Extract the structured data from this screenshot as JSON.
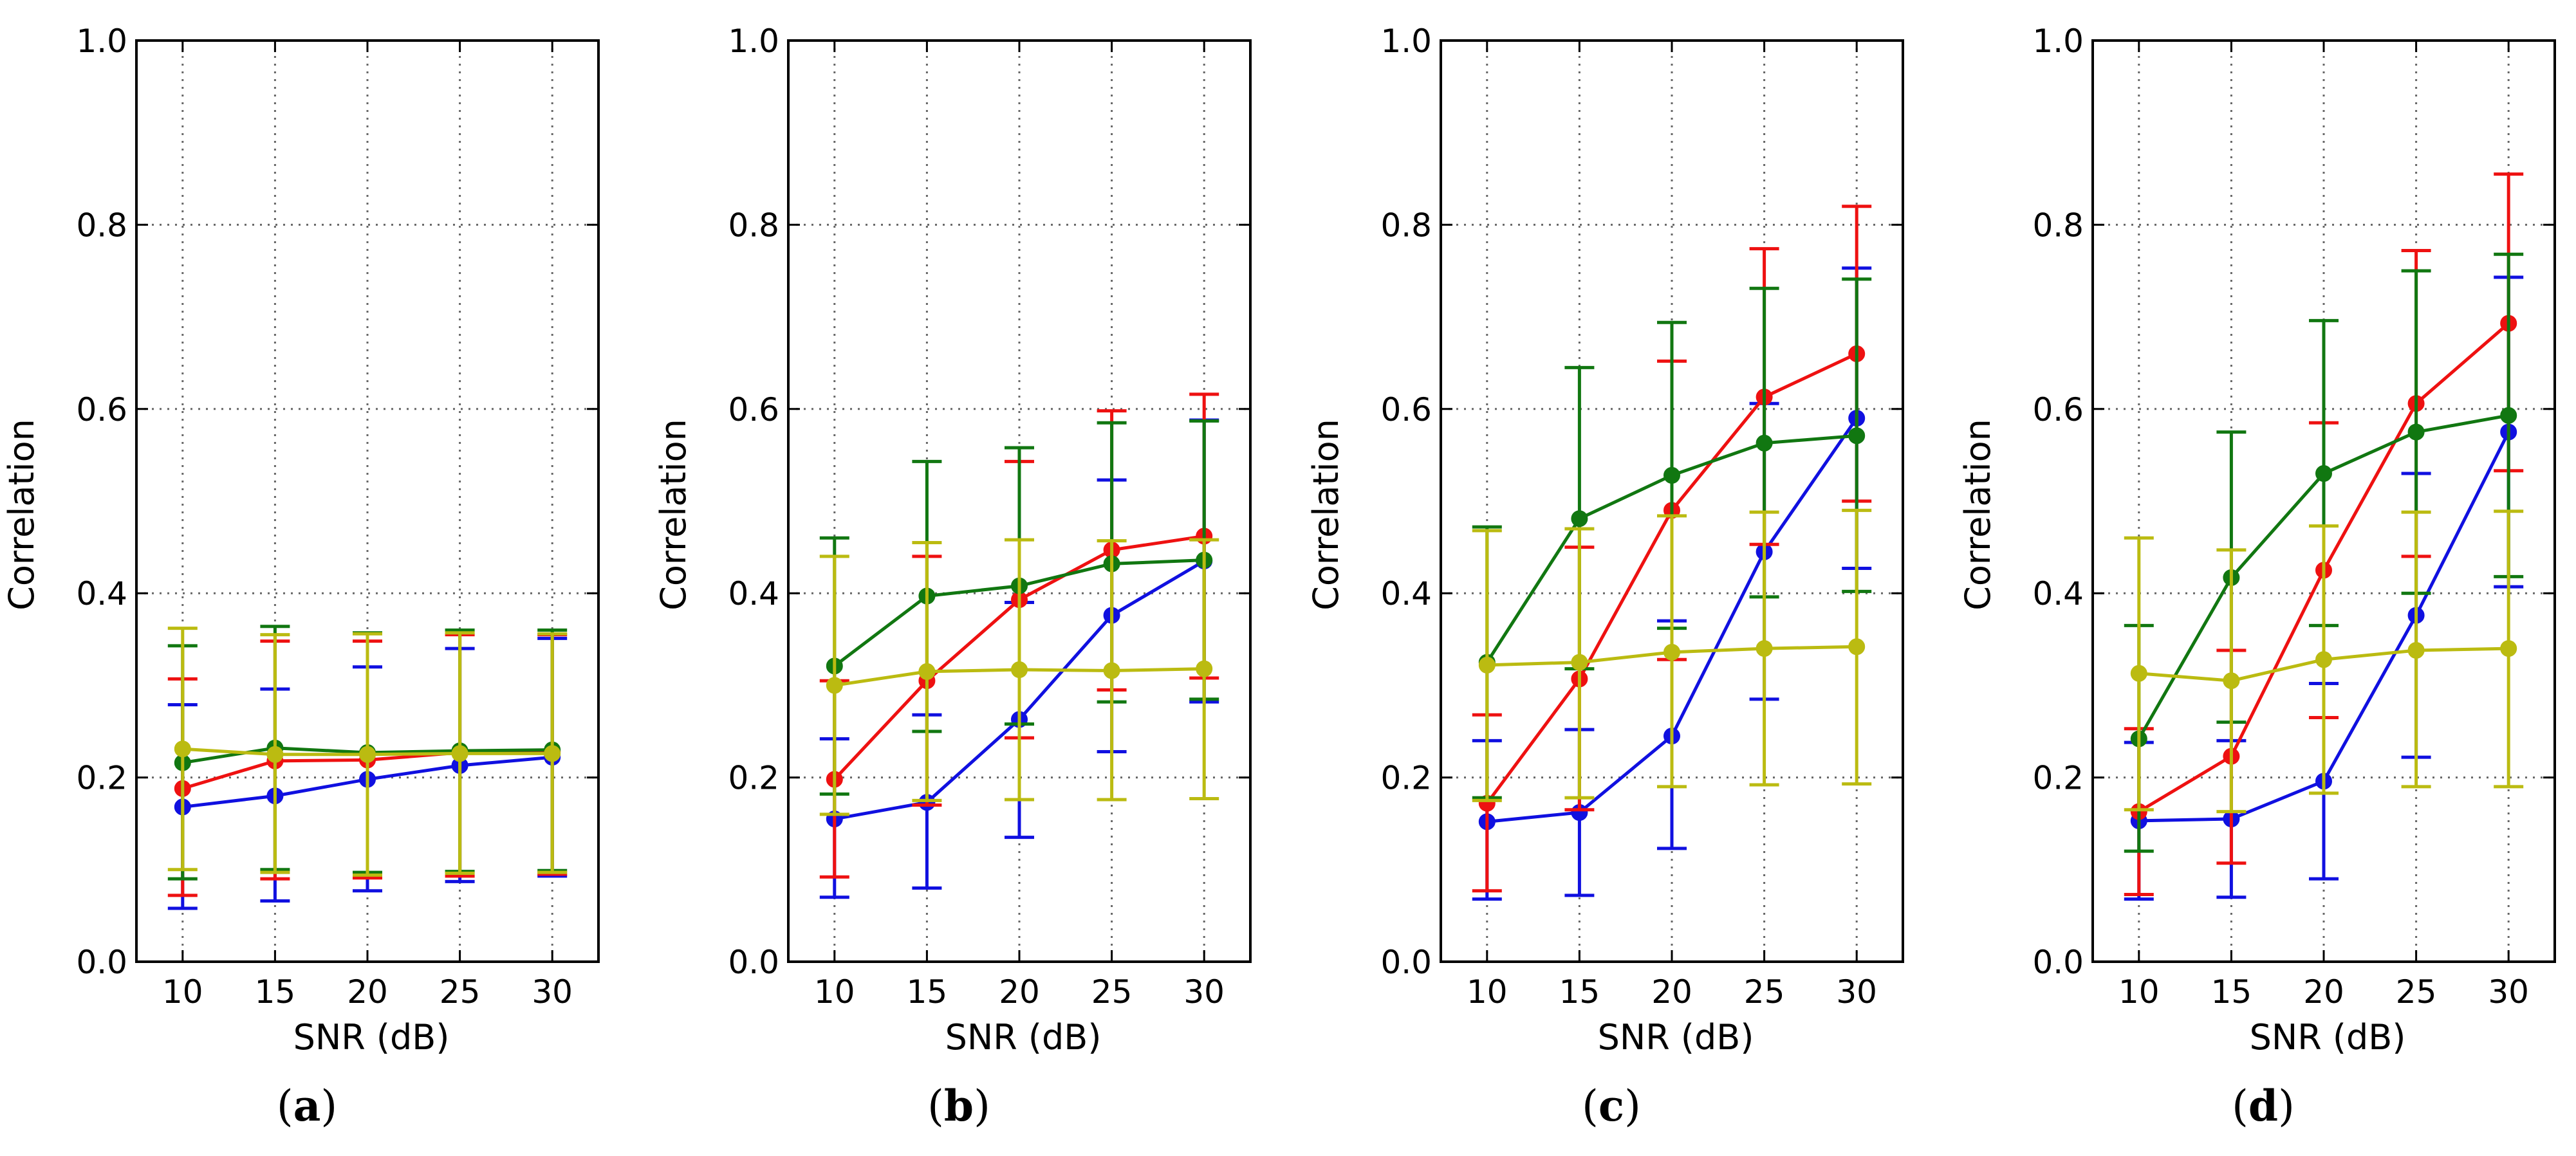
{
  "figure": {
    "colors": {
      "blue": "#1010e0",
      "red": "#ee1111",
      "green": "#117711",
      "yellow": "#bbbb11",
      "grid": "#666666",
      "axis": "#000000"
    }
  },
  "chart_data": [
    {
      "type": "line",
      "panel": "a",
      "caption_open": "(",
      "caption_letter": "a",
      "caption_close": ")",
      "xlabel": "SNR (dB)",
      "ylabel": "Correlation",
      "x": [
        10,
        15,
        20,
        25,
        30
      ],
      "xlim": [
        7.5,
        32.5
      ],
      "ylim": [
        0.0,
        1.0
      ],
      "xticks": [
        10,
        15,
        20,
        25,
        30
      ],
      "yticks": [
        "0.0",
        "0.2",
        "0.4",
        "0.6",
        "0.8",
        "1.0"
      ],
      "grid": true,
      "series": [
        {
          "color": "blue",
          "values": [
            0.168,
            0.18,
            0.198,
            0.213,
            0.222
          ],
          "err_low": [
            0.058,
            0.066,
            0.077,
            0.087,
            0.093
          ],
          "err_high": [
            0.279,
            0.296,
            0.32,
            0.34,
            0.351
          ]
        },
        {
          "color": "red",
          "values": [
            0.188,
            0.218,
            0.219,
            0.227,
            0.228
          ],
          "err_low": [
            0.072,
            0.09,
            0.091,
            0.093,
            0.095
          ],
          "err_high": [
            0.307,
            0.348,
            0.348,
            0.355,
            0.355
          ]
        },
        {
          "color": "green",
          "values": [
            0.216,
            0.232,
            0.227,
            0.229,
            0.23
          ],
          "err_low": [
            0.09,
            0.1,
            0.097,
            0.098,
            0.099
          ],
          "err_high": [
            0.343,
            0.364,
            0.357,
            0.36,
            0.36
          ]
        },
        {
          "color": "yellow",
          "values": [
            0.231,
            0.225,
            0.225,
            0.226,
            0.226
          ],
          "err_low": [
            0.1,
            0.097,
            0.094,
            0.096,
            0.097
          ],
          "err_high": [
            0.362,
            0.355,
            0.356,
            0.357,
            0.356
          ]
        }
      ]
    },
    {
      "type": "line",
      "panel": "b",
      "caption_open": "(",
      "caption_letter": "b",
      "caption_close": ")",
      "xlabel": "SNR (dB)",
      "ylabel": "Correlation",
      "x": [
        10,
        15,
        20,
        25,
        30
      ],
      "xlim": [
        7.5,
        32.5
      ],
      "ylim": [
        0.0,
        1.0
      ],
      "xticks": [
        10,
        15,
        20,
        25,
        30
      ],
      "yticks": [
        "0.0",
        "0.2",
        "0.4",
        "0.6",
        "0.8",
        "1.0"
      ],
      "grid": true,
      "series": [
        {
          "color": "blue",
          "values": [
            0.155,
            0.173,
            0.263,
            0.376,
            0.435
          ],
          "err_low": [
            0.07,
            0.08,
            0.135,
            0.228,
            0.282
          ],
          "err_high": [
            0.242,
            0.268,
            0.39,
            0.523,
            0.588
          ]
        },
        {
          "color": "red",
          "values": [
            0.198,
            0.305,
            0.393,
            0.447,
            0.462
          ],
          "err_low": [
            0.092,
            0.17,
            0.243,
            0.295,
            0.308
          ],
          "err_high": [
            0.305,
            0.44,
            0.543,
            0.598,
            0.616
          ]
        },
        {
          "color": "green",
          "values": [
            0.321,
            0.397,
            0.408,
            0.432,
            0.436
          ],
          "err_low": [
            0.182,
            0.25,
            0.258,
            0.282,
            0.285
          ],
          "err_high": [
            0.46,
            0.543,
            0.558,
            0.585,
            0.587
          ]
        },
        {
          "color": "yellow",
          "values": [
            0.3,
            0.315,
            0.317,
            0.316,
            0.318
          ],
          "err_low": [
            0.16,
            0.175,
            0.176,
            0.176,
            0.177
          ],
          "err_high": [
            0.44,
            0.455,
            0.458,
            0.457,
            0.458
          ]
        }
      ]
    },
    {
      "type": "line",
      "panel": "c",
      "caption_open": "(",
      "caption_letter": "c",
      "caption_close": ")",
      "xlabel": "SNR (dB)",
      "ylabel": "Correlation",
      "x": [
        10,
        15,
        20,
        25,
        30
      ],
      "xlim": [
        7.5,
        32.5
      ],
      "ylim": [
        0.0,
        1.0
      ],
      "xticks": [
        10,
        15,
        20,
        25,
        30
      ],
      "yticks": [
        "0.0",
        "0.2",
        "0.4",
        "0.6",
        "0.8",
        "1.0"
      ],
      "grid": true,
      "series": [
        {
          "color": "blue",
          "values": [
            0.152,
            0.162,
            0.245,
            0.445,
            0.59
          ],
          "err_low": [
            0.068,
            0.072,
            0.123,
            0.285,
            0.427
          ],
          "err_high": [
            0.24,
            0.252,
            0.37,
            0.606,
            0.753
          ]
        },
        {
          "color": "red",
          "values": [
            0.172,
            0.307,
            0.49,
            0.613,
            0.66
          ],
          "err_low": [
            0.077,
            0.165,
            0.328,
            0.453,
            0.5
          ],
          "err_high": [
            0.268,
            0.45,
            0.652,
            0.774,
            0.82
          ]
        },
        {
          "color": "green",
          "values": [
            0.325,
            0.481,
            0.528,
            0.563,
            0.571
          ],
          "err_low": [
            0.178,
            0.318,
            0.362,
            0.396,
            0.402
          ],
          "err_high": [
            0.472,
            0.645,
            0.694,
            0.731,
            0.741
          ]
        },
        {
          "color": "yellow",
          "values": [
            0.322,
            0.325,
            0.336,
            0.34,
            0.342
          ],
          "err_low": [
            0.175,
            0.178,
            0.19,
            0.192,
            0.193
          ],
          "err_high": [
            0.468,
            0.47,
            0.484,
            0.488,
            0.49
          ]
        }
      ]
    },
    {
      "type": "line",
      "panel": "d",
      "caption_open": "(",
      "caption_letter": "d",
      "caption_close": ")",
      "xlabel": "SNR (dB)",
      "ylabel": "Correlation",
      "x": [
        10,
        15,
        20,
        25,
        30
      ],
      "xlim": [
        7.5,
        32.5
      ],
      "ylim": [
        0.0,
        1.0
      ],
      "xticks": [
        10,
        15,
        20,
        25,
        30
      ],
      "yticks": [
        "0.0",
        "0.2",
        "0.4",
        "0.6",
        "0.8",
        "1.0"
      ],
      "grid": true,
      "series": [
        {
          "color": "blue",
          "values": [
            0.153,
            0.155,
            0.196,
            0.376,
            0.575
          ],
          "err_low": [
            0.068,
            0.07,
            0.09,
            0.222,
            0.407
          ],
          "err_high": [
            0.238,
            0.24,
            0.302,
            0.53,
            0.743
          ]
        },
        {
          "color": "red",
          "values": [
            0.163,
            0.223,
            0.425,
            0.606,
            0.693
          ],
          "err_low": [
            0.073,
            0.107,
            0.265,
            0.44,
            0.533
          ],
          "err_high": [
            0.253,
            0.338,
            0.585,
            0.772,
            0.855
          ]
        },
        {
          "color": "green",
          "values": [
            0.242,
            0.417,
            0.53,
            0.575,
            0.593
          ],
          "err_low": [
            0.12,
            0.26,
            0.365,
            0.4,
            0.418
          ],
          "err_high": [
            0.365,
            0.575,
            0.696,
            0.75,
            0.768
          ]
        },
        {
          "color": "yellow",
          "values": [
            0.313,
            0.305,
            0.328,
            0.338,
            0.34
          ],
          "err_low": [
            0.165,
            0.163,
            0.183,
            0.19,
            0.19
          ],
          "err_high": [
            0.46,
            0.447,
            0.473,
            0.488,
            0.489
          ]
        }
      ]
    }
  ]
}
